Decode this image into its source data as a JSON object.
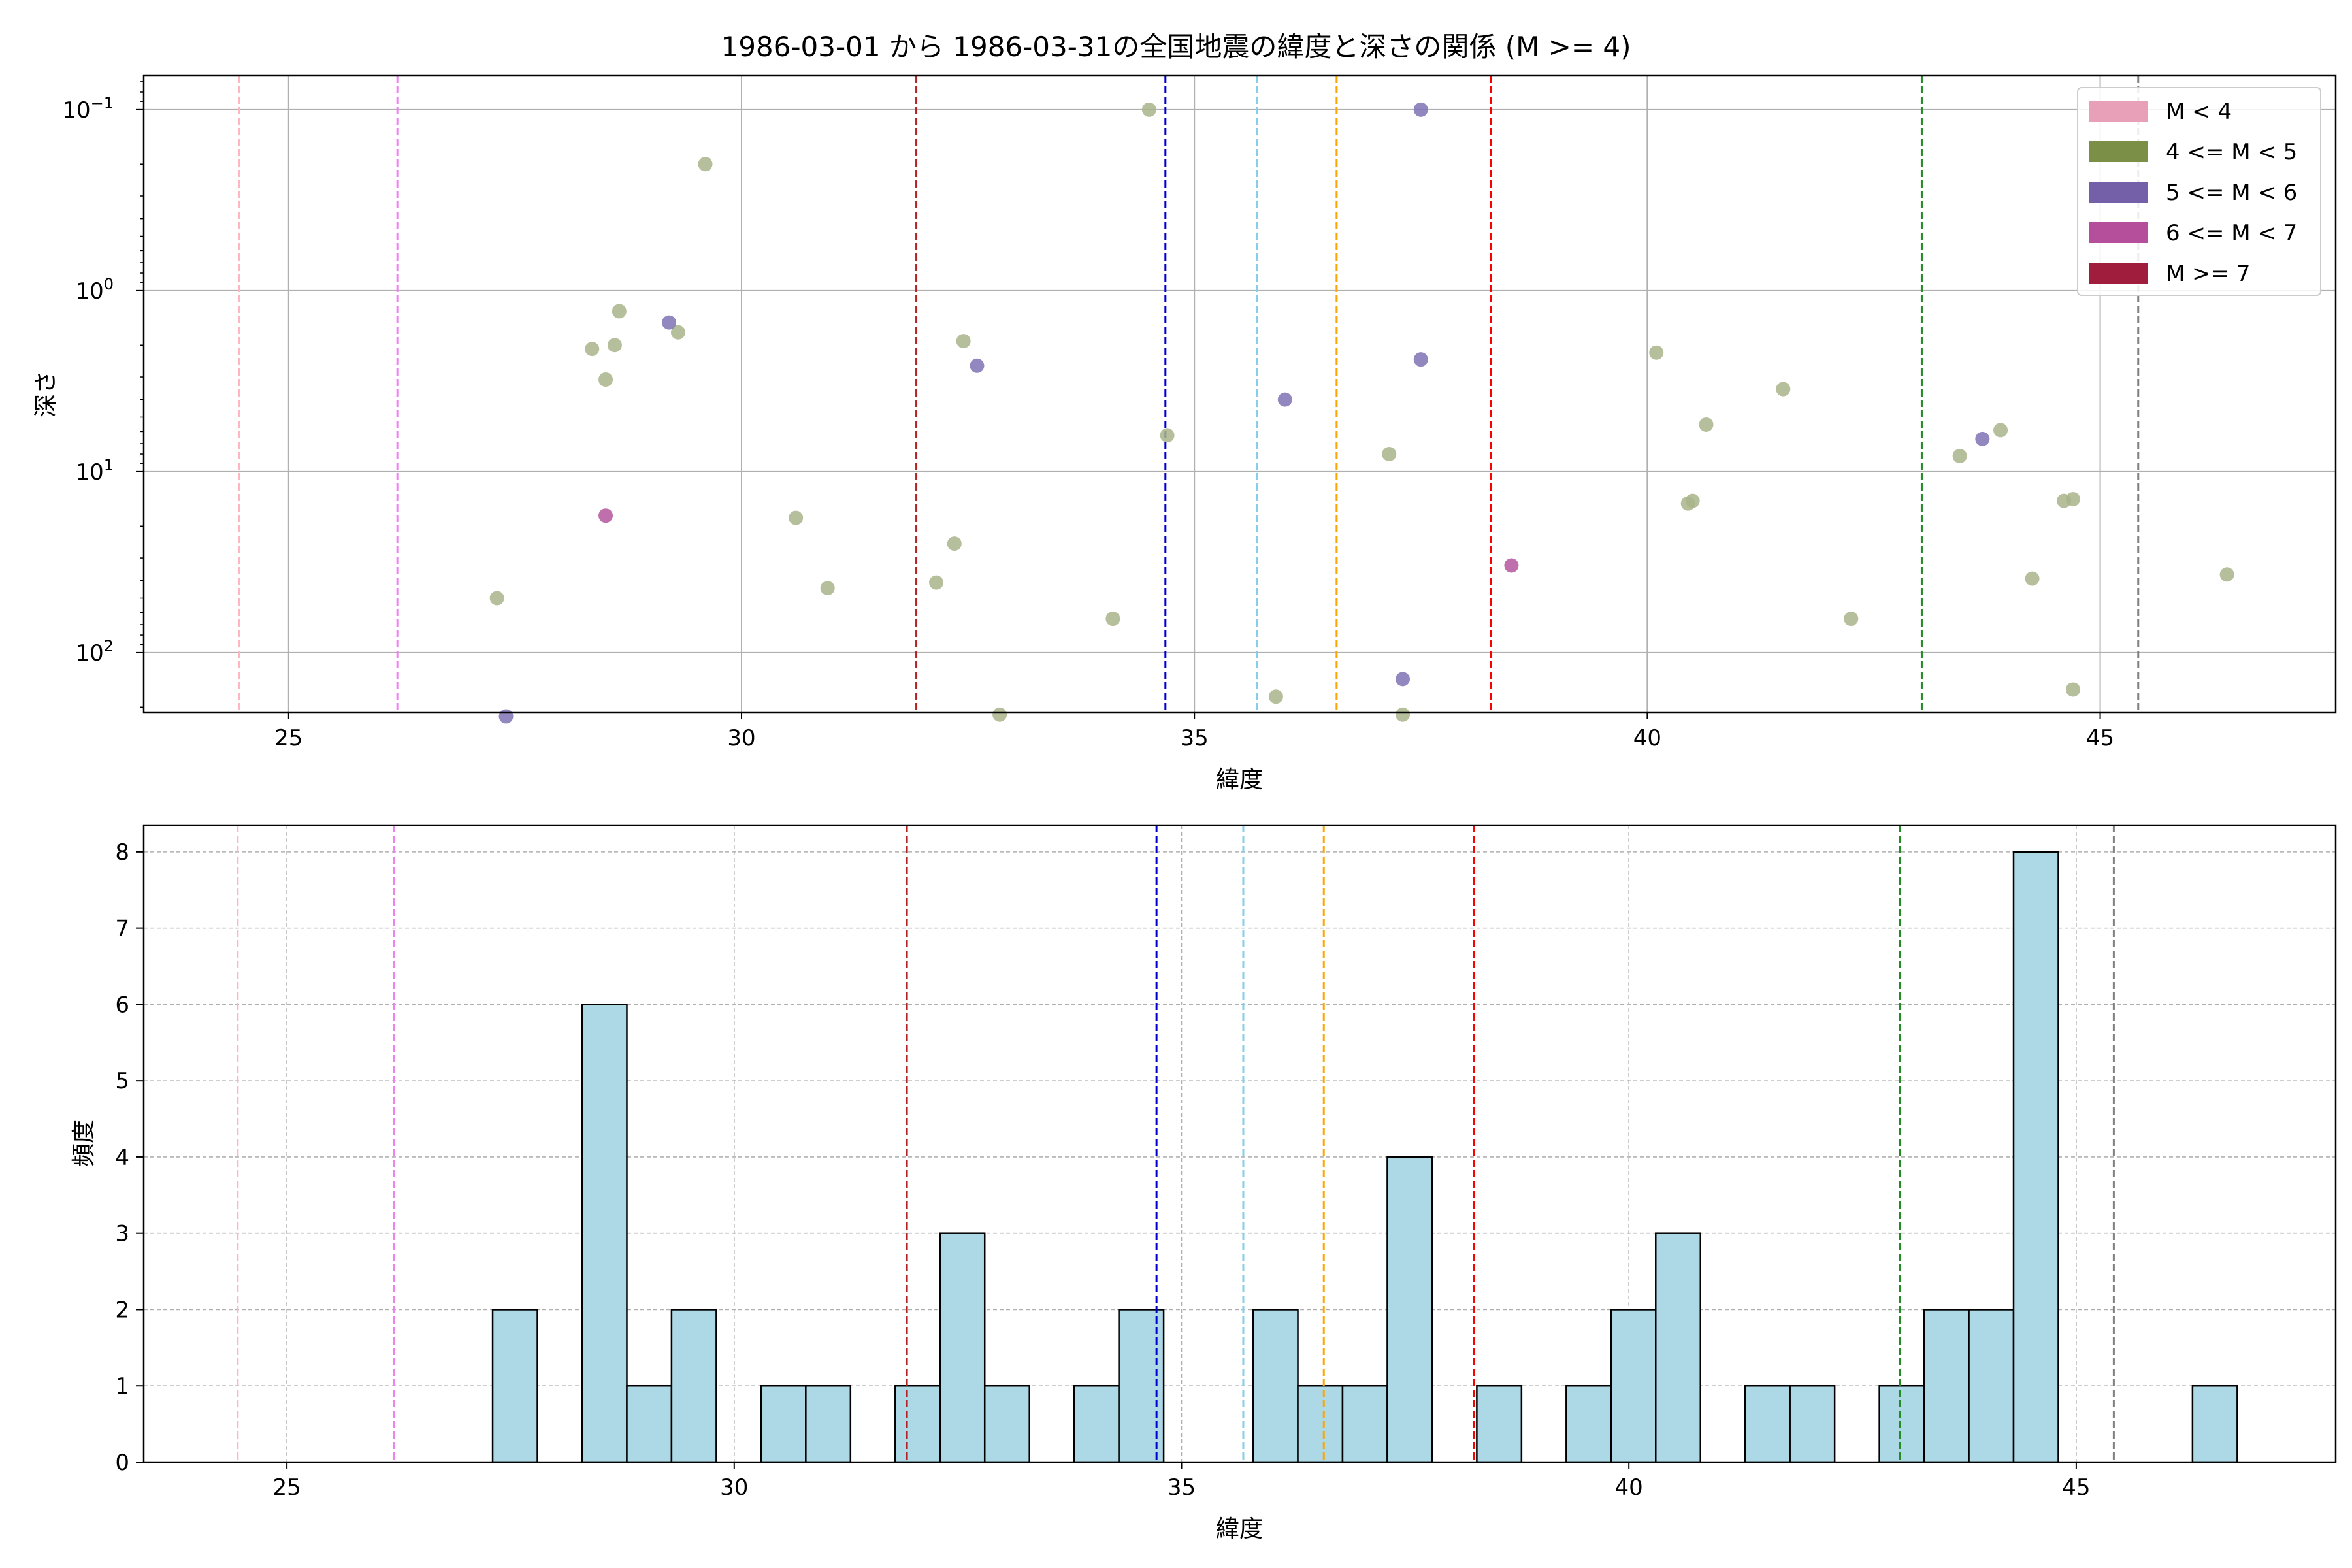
{
  "figure": {
    "title": "1986-03-01 から 1986-03-31の全国地震の緯度と深さの関係 (M >= 4)"
  },
  "chart_data": [
    {
      "type": "scatter",
      "xlabel": "緯度",
      "ylabel": "深さ",
      "xlim": [
        23.4,
        47.6
      ],
      "ylim_log": [
        0.065,
        215
      ],
      "y_scale": "log",
      "y_inverted": true,
      "x_ticks": [
        25,
        30,
        35,
        40,
        45
      ],
      "y_ticks": [
        {
          "value": 0.1,
          "label": "10⁻¹"
        },
        {
          "value": 1,
          "label": "10⁰"
        },
        {
          "value": 10,
          "label": "10¹"
        },
        {
          "value": 100,
          "label": "10²"
        }
      ],
      "grid": true,
      "legend_position": "top-right",
      "legend": [
        {
          "label": "M < 4",
          "color": "#e7a0b8"
        },
        {
          "label": "4 <= M < 5",
          "color": "#7b8f47"
        },
        {
          "label": "5 <= M < 6",
          "color": "#7460a8"
        },
        {
          "label": "6 <= M < 7",
          "color": "#b54f9c"
        },
        {
          "label": "M >= 7",
          "color": "#a01d3e"
        }
      ],
      "vlines": [
        {
          "x": 24.45,
          "color": "#ffb6c1"
        },
        {
          "x": 26.2,
          "color": "#ee82ee"
        },
        {
          "x": 31.93,
          "color": "#b22222"
        },
        {
          "x": 34.68,
          "color": "#0000cd"
        },
        {
          "x": 35.69,
          "color": "#87ceeb"
        },
        {
          "x": 36.57,
          "color": "#ffa500"
        },
        {
          "x": 38.27,
          "color": "#ff0000"
        },
        {
          "x": 43.03,
          "color": "#228b22"
        },
        {
          "x": 45.42,
          "color": "#808080"
        }
      ],
      "series": [
        {
          "name": "4 <= M < 5",
          "color": "#a9b48a",
          "points": [
            [
              27.3,
              50
            ],
            [
              28.35,
              2.1
            ],
            [
              28.5,
              3.1
            ],
            [
              28.6,
              2.0
            ],
            [
              28.65,
              1.3
            ],
            [
              29.3,
              1.7
            ],
            [
              29.6,
              0.2
            ],
            [
              30.6,
              18
            ],
            [
              30.95,
              44
            ],
            [
              32.15,
              41
            ],
            [
              32.35,
              25
            ],
            [
              32.45,
              1.9
            ],
            [
              32.85,
              220
            ],
            [
              34.1,
              65
            ],
            [
              34.5,
              0.1
            ],
            [
              34.7,
              6.3
            ],
            [
              35.9,
              175
            ],
            [
              37.15,
              8
            ],
            [
              37.3,
              220
            ],
            [
              40.1,
              2.2
            ],
            [
              40.45,
              15
            ],
            [
              40.5,
              14.5
            ],
            [
              40.65,
              5.5
            ],
            [
              41.5,
              3.5
            ],
            [
              42.25,
              65
            ],
            [
              43.45,
              8.2
            ],
            [
              43.9,
              5.9
            ],
            [
              44.25,
              39
            ],
            [
              44.6,
              14.5
            ],
            [
              44.7,
              160
            ],
            [
              44.7,
              14.2
            ],
            [
              46.4,
              37
            ]
          ]
        },
        {
          "name": "5 <= M < 6",
          "color": "#8072b4",
          "points": [
            [
              27.4,
              225
            ],
            [
              29.2,
              1.5
            ],
            [
              32.6,
              2.6
            ],
            [
              36.0,
              4.0
            ],
            [
              37.3,
              140
            ],
            [
              37.5,
              2.4
            ],
            [
              37.5,
              0.1
            ],
            [
              43.7,
              6.6
            ]
          ]
        },
        {
          "name": "6 <= M < 7",
          "color": "#b4579d",
          "points": [
            [
              28.5,
              17.5
            ],
            [
              38.5,
              33
            ]
          ]
        }
      ]
    },
    {
      "type": "bar",
      "xlabel": "緯度",
      "ylabel": "頻度",
      "xlim": [
        23.4,
        47.9
      ],
      "ylim": [
        0,
        8.35
      ],
      "x_ticks": [
        25,
        30,
        35,
        40,
        45
      ],
      "y_ticks": [
        0,
        1,
        2,
        3,
        4,
        5,
        6,
        7,
        8
      ],
      "grid": true,
      "bar_color": "#add8e6",
      "bin_width": 0.5,
      "bins": [
        {
          "start": 27.3,
          "value": 2
        },
        {
          "start": 28.3,
          "value": 6
        },
        {
          "start": 28.8,
          "value": 1
        },
        {
          "start": 29.3,
          "value": 2
        },
        {
          "start": 30.3,
          "value": 1
        },
        {
          "start": 30.8,
          "value": 1
        },
        {
          "start": 31.8,
          "value": 1
        },
        {
          "start": 32.3,
          "value": 3
        },
        {
          "start": 32.8,
          "value": 1
        },
        {
          "start": 33.8,
          "value": 1
        },
        {
          "start": 34.3,
          "value": 2
        },
        {
          "start": 35.8,
          "value": 2
        },
        {
          "start": 36.3,
          "value": 1
        },
        {
          "start": 36.8,
          "value": 1
        },
        {
          "start": 37.3,
          "value": 4
        },
        {
          "start": 38.3,
          "value": 1
        },
        {
          "start": 39.3,
          "value": 1
        },
        {
          "start": 39.8,
          "value": 2
        },
        {
          "start": 40.3,
          "value": 3
        },
        {
          "start": 41.3,
          "value": 1
        },
        {
          "start": 41.8,
          "value": 1
        },
        {
          "start": 42.8,
          "value": 1
        },
        {
          "start": 43.3,
          "value": 2
        },
        {
          "start": 43.8,
          "value": 2
        },
        {
          "start": 44.3,
          "value": 8
        },
        {
          "start": 46.3,
          "value": 1
        }
      ],
      "vlines": [
        {
          "x": 24.45,
          "color": "#ffb6c1"
        },
        {
          "x": 26.2,
          "color": "#ee82ee"
        },
        {
          "x": 31.93,
          "color": "#b22222"
        },
        {
          "x": 34.72,
          "color": "#0000cd"
        },
        {
          "x": 35.69,
          "color": "#87ceeb"
        },
        {
          "x": 36.59,
          "color": "#ffa500"
        },
        {
          "x": 38.27,
          "color": "#ff0000"
        },
        {
          "x": 43.03,
          "color": "#228b22"
        },
        {
          "x": 45.42,
          "color": "#808080"
        }
      ]
    }
  ]
}
